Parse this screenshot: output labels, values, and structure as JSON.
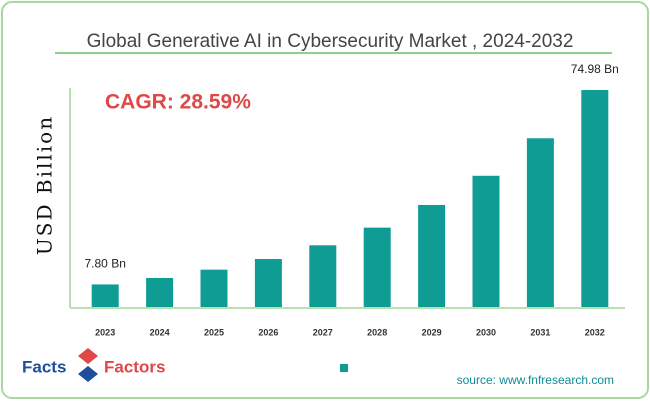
{
  "chart_data": {
    "type": "bar",
    "title": "Global Generative AI in Cybersecurity Market , 2024-2032",
    "y_label": "USD Billion",
    "annotation": "CAGR: 28.59%",
    "categories": [
      "2023",
      "2024",
      "2025",
      "2026",
      "2027",
      "2028",
      "2029",
      "2030",
      "2031",
      "2032"
    ],
    "values": [
      7.8,
      10.03,
      12.9,
      16.58,
      21.32,
      27.42,
      35.26,
      45.34,
      58.3,
      74.98
    ],
    "value_labels": [
      "7.80 Bn",
      null,
      null,
      null,
      null,
      null,
      null,
      null,
      null,
      "74.98 Bn"
    ],
    "color": "#0e9c94"
  },
  "logo": {
    "left": "Facts",
    "right": "Factors"
  },
  "source": "source: www.fnfresearch.com"
}
